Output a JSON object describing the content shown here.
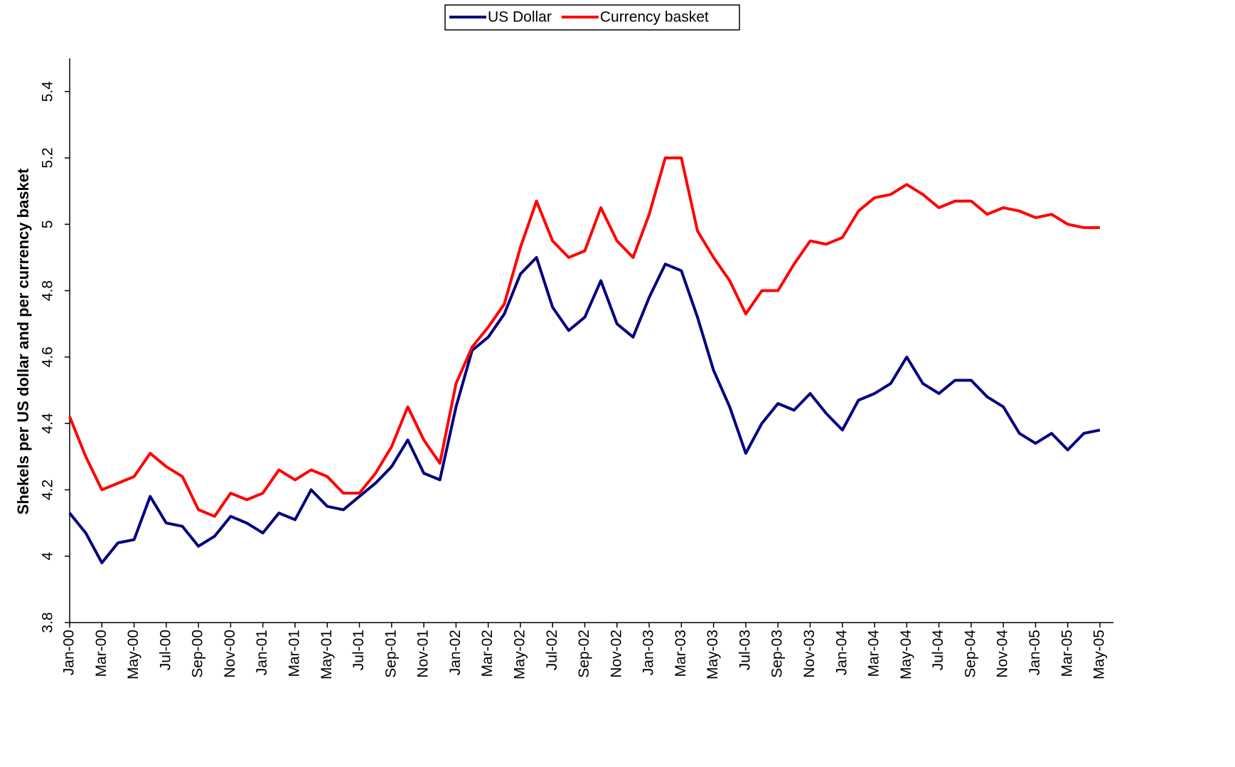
{
  "chart_data": {
    "type": "line",
    "y_label": "Shekels per US dollar and per currency basket",
    "categories": [
      "Jan-00",
      null,
      "Mar-00",
      null,
      "May-00",
      null,
      "Jul-00",
      null,
      "Sep-00",
      null,
      "Nov-00",
      null,
      "Jan-01",
      null,
      "Mar-01",
      null,
      "May-01",
      null,
      "Jul-01",
      null,
      "Sep-01",
      null,
      "Nov-01",
      null,
      "Jan-02",
      null,
      "Mar-02",
      null,
      "May-02",
      null,
      "Jul-02",
      null,
      "Sep-02",
      null,
      "Nov-02",
      null,
      "Jan-03",
      null,
      "Mar-03",
      null,
      "May-03",
      null,
      "Jul-03",
      null,
      "Sep-03",
      null,
      "Nov-03",
      null,
      "Jan-04",
      null,
      "Mar-04",
      null,
      "May-04",
      null,
      "Jul-04",
      null,
      "Sep-04",
      null,
      "Nov-04",
      null,
      "Jan-05",
      null,
      "Mar-05",
      null,
      "May-05"
    ],
    "series": [
      {
        "name": "US Dollar",
        "color": "#000080",
        "values": [
          4.13,
          4.07,
          3.98,
          4.04,
          4.05,
          4.18,
          4.1,
          4.09,
          4.03,
          4.06,
          4.12,
          4.1,
          4.07,
          4.13,
          4.11,
          4.2,
          4.15,
          4.14,
          4.18,
          4.22,
          4.27,
          4.35,
          4.25,
          4.23,
          4.45,
          4.62,
          4.66,
          4.73,
          4.85,
          4.9,
          4.75,
          4.68,
          4.72,
          4.83,
          4.7,
          4.66,
          4.78,
          4.88,
          4.86,
          4.72,
          4.56,
          4.45,
          4.31,
          4.4,
          4.46,
          4.44,
          4.49,
          4.43,
          4.38,
          4.47,
          4.49,
          4.52,
          4.6,
          4.52,
          4.49,
          4.53,
          4.53,
          4.48,
          4.45,
          4.37,
          4.34,
          4.37,
          4.32,
          4.37,
          4.38
        ]
      },
      {
        "name": "Currency basket",
        "color": "#ff0000",
        "values": [
          4.42,
          4.3,
          4.2,
          4.22,
          4.24,
          4.31,
          4.27,
          4.24,
          4.14,
          4.12,
          4.19,
          4.17,
          4.19,
          4.26,
          4.23,
          4.26,
          4.24,
          4.19,
          4.19,
          4.25,
          4.33,
          4.45,
          4.35,
          4.28,
          4.52,
          4.63,
          4.69,
          4.76,
          4.93,
          5.07,
          4.95,
          4.9,
          4.92,
          5.05,
          4.95,
          4.9,
          5.03,
          5.2,
          5.2,
          4.98,
          4.9,
          4.83,
          4.73,
          4.8,
          4.8,
          4.88,
          4.95,
          4.94,
          4.96,
          5.04,
          5.08,
          5.09,
          5.12,
          5.09,
          5.05,
          5.07,
          5.07,
          5.03,
          5.05,
          5.04,
          5.02,
          5.03,
          5.0,
          4.99,
          4.99
        ]
      }
    ],
    "ylim": [
      3.8,
      5.5
    ],
    "yticks": [
      3.8,
      4,
      4.2,
      4.4,
      4.6,
      4.8,
      5,
      5.2,
      5.4
    ],
    "grid": false,
    "legend": "top"
  }
}
